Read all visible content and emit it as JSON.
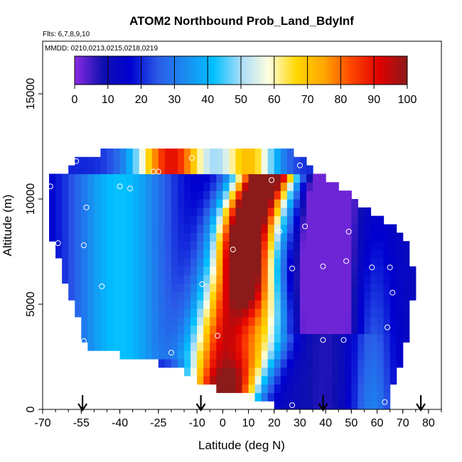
{
  "chart_data": {
    "type": "heatmap",
    "title": "ATOM2 Northbound Prob_Land_BdyInf",
    "flights_label": "Flts: 6,7,8,9,10",
    "dates_label": "MMDD: 0210,0213,0215,0218,0219",
    "xlabel": "Latitude (deg N)",
    "ylabel": "Altitude (m)",
    "xlim": [
      -70,
      85
    ],
    "ylim": [
      0,
      17500
    ],
    "x_ticks": [
      -70,
      -55,
      -40,
      -25,
      -10,
      0,
      10,
      20,
      30,
      40,
      50,
      60,
      70,
      80
    ],
    "x_tick_labels": [
      "-70",
      "-55",
      "-40",
      "-25",
      "-10",
      "0",
      "10",
      "20",
      "30",
      "40",
      "50",
      "60",
      "70",
      "80"
    ],
    "y_ticks": [
      0,
      5000,
      10000,
      15000
    ],
    "y_tick_labels": [
      "0",
      "5000",
      "10000",
      "15000"
    ],
    "colorbar": {
      "min": 0,
      "max": 100,
      "ticks": [
        0,
        10,
        20,
        30,
        40,
        50,
        60,
        70,
        80,
        90,
        100
      ],
      "tick_labels": [
        "0",
        "10",
        "20",
        "30",
        "40",
        "50",
        "60",
        "70",
        "80",
        "90",
        "100"
      ],
      "colors": [
        "#8a2be2",
        "#1010b0",
        "#0000d0",
        "#2a5ae8",
        "#1a8cf0",
        "#00bfff",
        "#a8dcf8",
        "#ffffe0",
        "#ffd700",
        "#ffa500",
        "#ff4500",
        "#e00000",
        "#8b1a1a"
      ]
    },
    "profile_arrows_lat": [
      -54.5,
      -8.5,
      39,
      77
    ],
    "sample_points": [
      {
        "lat": -57,
        "alt": 11800
      },
      {
        "lat": -12,
        "alt": 11950
      },
      {
        "lat": -25,
        "alt": 11300
      },
      {
        "lat": -27,
        "alt": 11300
      },
      {
        "lat": 30,
        "alt": 11600
      },
      {
        "lat": -67,
        "alt": 10600
      },
      {
        "lat": -36,
        "alt": 10500
      },
      {
        "lat": -40,
        "alt": 10600
      },
      {
        "lat": 19,
        "alt": 10900
      },
      {
        "lat": -53,
        "alt": 9600
      },
      {
        "lat": 32,
        "alt": 8700
      },
      {
        "lat": 22,
        "alt": 8450
      },
      {
        "lat": 49,
        "alt": 8450
      },
      {
        "lat": -64,
        "alt": 7900
      },
      {
        "lat": -54,
        "alt": 7800
      },
      {
        "lat": 4,
        "alt": 7600
      },
      {
        "lat": 48,
        "alt": 7050
      },
      {
        "lat": 39,
        "alt": 6800
      },
      {
        "lat": 27,
        "alt": 6700
      },
      {
        "lat": 58,
        "alt": 6750
      },
      {
        "lat": 65,
        "alt": 6750
      },
      {
        "lat": -8,
        "alt": 5950
      },
      {
        "lat": -47,
        "alt": 5850
      },
      {
        "lat": 66,
        "alt": 5550
      },
      {
        "lat": 64,
        "alt": 3900
      },
      {
        "lat": -2,
        "alt": 3500
      },
      {
        "lat": -54,
        "alt": 3250
      },
      {
        "lat": 39,
        "alt": 3300
      },
      {
        "lat": 47,
        "alt": 3300
      },
      {
        "lat": -20,
        "alt": 2700
      },
      {
        "lat": 27,
        "alt": 200
      },
      {
        "lat": 63,
        "alt": 350
      }
    ]
  }
}
